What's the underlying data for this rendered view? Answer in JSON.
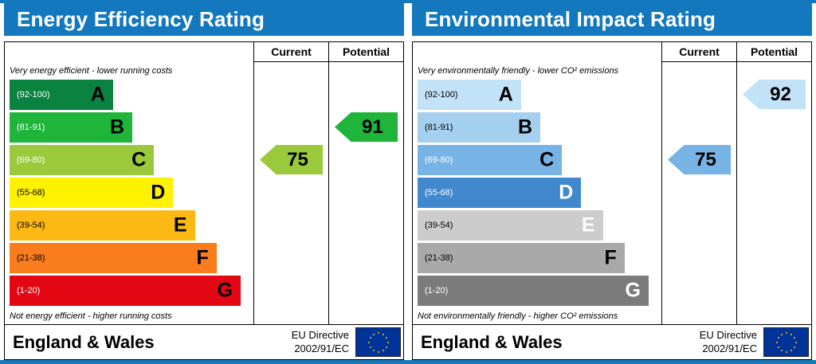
{
  "page": {
    "accent_color": "#1478be"
  },
  "chart_data": [
    {
      "type": "bar",
      "title": "Energy Efficiency Rating",
      "categories": [
        "A",
        "B",
        "C",
        "D",
        "E",
        "F",
        "G"
      ],
      "band_ranges": [
        "92-100",
        "81-91",
        "69-80",
        "55-68",
        "39-54",
        "21-38",
        "1-20"
      ],
      "series": [
        {
          "name": "Current",
          "values": [
            75
          ],
          "band": "C"
        },
        {
          "name": "Potential",
          "values": [
            91
          ],
          "band": "B"
        }
      ],
      "ylim": [
        1,
        100
      ],
      "top_label": "Very energy efficient - lower running costs",
      "bottom_label": "Not energy efficient - higher running costs"
    },
    {
      "type": "bar",
      "title": "Environmental Impact Rating",
      "categories": [
        "A",
        "B",
        "C",
        "D",
        "E",
        "F",
        "G"
      ],
      "band_ranges": [
        "92-100",
        "81-91",
        "69-80",
        "55-68",
        "39-54",
        "21-38",
        "1-20"
      ],
      "series": [
        {
          "name": "Current",
          "values": [
            75
          ],
          "band": "C"
        },
        {
          "name": "Potential",
          "values": [
            92
          ],
          "band": "A"
        }
      ],
      "ylim": [
        1,
        100
      ],
      "top_label": "Very environmentally friendly - lower CO² emissions",
      "bottom_label": "Not environmentally friendly - higher CO² emissions"
    }
  ],
  "panels": [
    {
      "title": "Energy Efficiency Rating",
      "columns": {
        "current": "Current",
        "potential": "Potential"
      },
      "top_note": "Very energy efficient - lower running costs",
      "bottom_note": "Not energy efficient - higher running costs",
      "bands": [
        {
          "letter": "A",
          "range": "(92-100)",
          "color": "#0a8240",
          "range_color": "#ffffff",
          "letter_color": "#000000"
        },
        {
          "letter": "B",
          "range": "(81-91)",
          "color": "#1eb53a",
          "range_color": "#ffffff",
          "letter_color": "#000000"
        },
        {
          "letter": "C",
          "range": "(69-80)",
          "color": "#9aca3b",
          "range_color": "#ffffff",
          "letter_color": "#000000"
        },
        {
          "letter": "D",
          "range": "(55-68)",
          "color": "#fff200",
          "range_color": "#000000",
          "letter_color": "#000000"
        },
        {
          "letter": "E",
          "range": "(39-54)",
          "color": "#fcb813",
          "range_color": "#000000",
          "letter_color": "#000000"
        },
        {
          "letter": "F",
          "range": "(21-38)",
          "color": "#f97d1d",
          "range_color": "#000000",
          "letter_color": "#000000"
        },
        {
          "letter": "G",
          "range": "(1-20)",
          "color": "#e30613",
          "range_color": "#ffffff",
          "letter_color": "#000000"
        }
      ],
      "current": {
        "value": "75",
        "color": "#9aca3b"
      },
      "potential": {
        "value": "91",
        "color": "#1eb53a"
      },
      "footer": {
        "region": "England & Wales",
        "directive_line1": "EU Directive",
        "directive_line2": "2002/91/EC"
      }
    },
    {
      "title": "Environmental Impact Rating",
      "columns": {
        "current": "Current",
        "potential": "Potential"
      },
      "top_note": "Very environmentally friendly - lower CO² emissions",
      "bottom_note": "Not environmentally friendly - higher CO² emissions",
      "bands": [
        {
          "letter": "A",
          "range": "(92-100)",
          "color": "#c2e2f8",
          "range_color": "#000000",
          "letter_color": "#000000"
        },
        {
          "letter": "B",
          "range": "(81-91)",
          "color": "#a5cfee",
          "range_color": "#000000",
          "letter_color": "#000000"
        },
        {
          "letter": "C",
          "range": "(69-80)",
          "color": "#77b3e4",
          "range_color": "#ffffff",
          "letter_color": "#000000"
        },
        {
          "letter": "D",
          "range": "(55-68)",
          "color": "#4188cf",
          "range_color": "#ffffff",
          "letter_color": "#ffffff"
        },
        {
          "letter": "E",
          "range": "(39-54)",
          "color": "#cccccc",
          "range_color": "#000000",
          "letter_color": "#ffffff"
        },
        {
          "letter": "F",
          "range": "(21-38)",
          "color": "#a9a9a9",
          "range_color": "#000000",
          "letter_color": "#000000"
        },
        {
          "letter": "G",
          "range": "(1-20)",
          "color": "#7b7b7b",
          "range_color": "#ffffff",
          "letter_color": "#ffffff"
        }
      ],
      "current": {
        "value": "75",
        "color": "#77b3e4"
      },
      "potential": {
        "value": "92",
        "color": "#c2e2f8"
      },
      "footer": {
        "region": "England & Wales",
        "directive_line1": "EU Directive",
        "directive_line2": "2002/91/EC"
      }
    }
  ]
}
